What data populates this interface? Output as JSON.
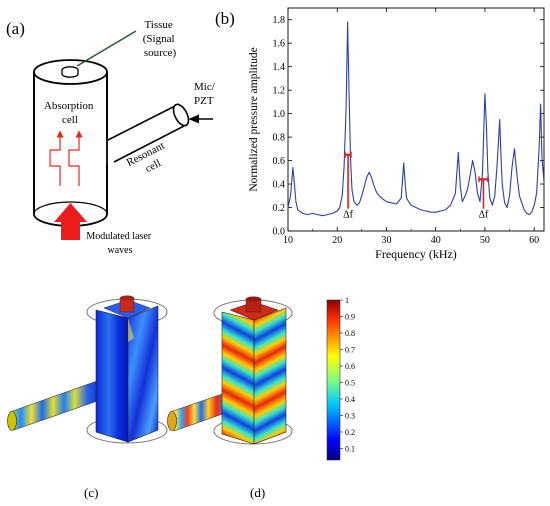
{
  "panel_labels": {
    "a": "(a)",
    "b": "(b)",
    "c": "(c)",
    "d": "(d)"
  },
  "diagram": {
    "tissue_lines": [
      "Tissue",
      "(Signal",
      "source)"
    ],
    "mic_lines": [
      "Mic/",
      "PZT"
    ],
    "absorption_lines": [
      "Absorption",
      "cell"
    ],
    "resonant_lines": [
      "Resonant",
      "cell"
    ],
    "laser_lines": [
      "Modulated laser",
      "waves"
    ],
    "colors": {
      "wave": "#e8281e",
      "laser_arrow": "#ee1c1c",
      "outline": "#000000",
      "tissue_line": "#2e5a2e"
    }
  },
  "chart_data": {
    "type": "line",
    "xlabel": "Frequency (kHz)",
    "ylabel": "Normalized pressure amplitude",
    "xlim": [
      10,
      62
    ],
    "ylim": [
      0.0,
      1.9
    ],
    "xticks": [
      10,
      20,
      30,
      40,
      50,
      60
    ],
    "yticks": [
      0.0,
      0.2,
      0.4,
      0.6,
      0.8,
      1.0,
      1.2,
      1.4,
      1.6,
      1.8
    ],
    "grid": false,
    "series": [
      {
        "color": "#2e3ea8",
        "x": [
          10,
          10.5,
          11,
          11.3,
          11.6,
          12,
          13,
          14,
          15,
          16,
          17,
          18,
          19,
          20,
          20.5,
          21,
          21.4,
          21.8,
          22.1,
          22.4,
          22.7,
          23,
          23.4,
          24,
          24.5,
          25,
          25.5,
          26,
          26.5,
          27,
          27.5,
          28,
          28.5,
          29,
          30,
          31,
          32,
          33,
          33.5,
          33.8,
          34.1,
          34.5,
          35,
          36,
          37,
          38,
          39,
          40,
          41,
          42,
          43,
          44,
          44.6,
          45,
          45.4,
          46,
          46.5,
          47,
          47.5,
          48,
          48.5,
          49,
          49.5,
          50,
          50.3,
          50.6,
          51,
          51.5,
          52,
          52.5,
          53,
          53.2,
          53.5,
          54,
          54.5,
          55,
          55.5,
          56,
          56.5,
          57,
          57.5,
          58,
          58.5,
          59,
          59.5,
          60,
          60.5,
          61,
          61.3,
          61.6,
          62
        ],
        "y": [
          0.2,
          0.3,
          0.54,
          0.4,
          0.25,
          0.18,
          0.15,
          0.14,
          0.15,
          0.14,
          0.13,
          0.14,
          0.15,
          0.17,
          0.2,
          0.3,
          0.55,
          1.05,
          1.78,
          1.2,
          0.62,
          0.35,
          0.25,
          0.22,
          0.24,
          0.3,
          0.38,
          0.46,
          0.5,
          0.45,
          0.38,
          0.33,
          0.3,
          0.28,
          0.25,
          0.24,
          0.23,
          0.28,
          0.58,
          0.4,
          0.28,
          0.25,
          0.22,
          0.2,
          0.18,
          0.17,
          0.16,
          0.16,
          0.17,
          0.18,
          0.22,
          0.32,
          0.67,
          0.38,
          0.25,
          0.3,
          0.36,
          0.48,
          0.6,
          0.5,
          0.32,
          0.25,
          0.5,
          1.17,
          0.9,
          0.5,
          0.28,
          0.22,
          0.3,
          0.58,
          0.95,
          0.7,
          0.4,
          0.24,
          0.2,
          0.3,
          0.54,
          0.7,
          0.48,
          0.3,
          0.24,
          0.18,
          0.15,
          0.14,
          0.16,
          0.22,
          0.32,
          0.7,
          1.08,
          0.62,
          0.42
        ]
      }
    ],
    "annotations": [
      {
        "label": "Δf",
        "x_left": 21.6,
        "x_right": 22.8,
        "y": 0.65
      },
      {
        "label": "Δf",
        "x_left": 48.8,
        "x_right": 50.6,
        "y": 0.44
      }
    ]
  },
  "colorbar": {
    "ticks": [
      "1",
      "0.9",
      "0.8",
      "0.7",
      "0.6",
      "0.5",
      "0.4",
      "0.3",
      "0.2",
      "0.1"
    ],
    "min": 0.03,
    "max": 1.0
  }
}
